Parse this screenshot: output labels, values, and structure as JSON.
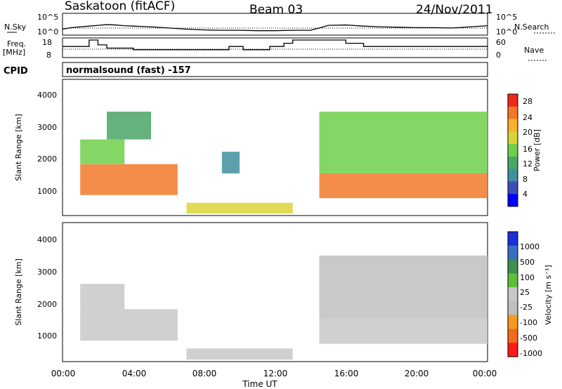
{
  "header": {
    "title": "Saskatoon (fitACF)",
    "beam": "Beam 03",
    "date": "24/Nov/2011"
  },
  "noise": {
    "left_label": "N.Sky",
    "right_label": "N.Search",
    "ticks": [
      "10^5",
      "10^0"
    ]
  },
  "freq": {
    "left_label_1": "Freq.",
    "left_label_2": "[MHz]",
    "right_label": "Nave",
    "left_ticks": [
      "18",
      "8"
    ],
    "right_ticks": [
      "60",
      "0"
    ]
  },
  "cpid": {
    "label": "CPID",
    "text": "normalsound (fast) -157"
  },
  "panels": {
    "power": {
      "ylabel": "Slant Range [km]",
      "yticks": [
        "4000",
        "3000",
        "2000",
        "1000"
      ],
      "colorbar_label": "Power [dB]",
      "colorbar_ticks": [
        "28",
        "24",
        "20",
        "16",
        "12",
        "8",
        "4"
      ]
    },
    "velocity": {
      "ylabel": "Slant Range [km]",
      "yticks": [
        "4000",
        "3000",
        "2000",
        "1000"
      ],
      "colorbar_label": "Velocity [m s⁻¹]",
      "colorbar_ticks": [
        "1000",
        "500",
        "100",
        "25",
        "-25",
        "-100",
        "-500",
        "-1000"
      ]
    }
  },
  "xaxis": {
    "label": "Time UT",
    "ticks": [
      "00:00",
      "04:00",
      "08:00",
      "12:00",
      "16:00",
      "20:00",
      "00:00"
    ]
  },
  "chart_data": [
    {
      "type": "line",
      "title": "N.Sky",
      "x_hours": [
        0,
        0.5,
        1,
        1.5,
        2,
        2.5,
        3,
        3.5,
        4,
        5,
        6,
        7,
        8,
        9,
        10,
        11,
        12,
        13,
        14,
        14.5,
        15,
        16,
        17,
        18,
        19,
        20,
        21,
        22,
        23,
        24
      ],
      "values_log10": [
        1.2,
        1.6,
        1.8,
        2.0,
        2.2,
        2.4,
        2.3,
        2.1,
        2.0,
        1.8,
        1.5,
        1.2,
        1.0,
        0.9,
        0.9,
        0.8,
        0.8,
        0.9,
        0.9,
        1.5,
        2.2,
        2.3,
        2.0,
        1.8,
        1.7,
        1.6,
        1.6,
        1.5,
        1.8,
        2.1
      ],
      "ylim_log10": [
        0,
        5
      ]
    },
    {
      "type": "line",
      "title": "Freq.",
      "units": "MHz",
      "x_hours": [
        0,
        1.5,
        2,
        2.5,
        4,
        8,
        9.4,
        10.2,
        11.7,
        12.5,
        13,
        14.5,
        16,
        17,
        24
      ],
      "values": [
        14,
        18,
        15,
        13,
        12,
        12,
        14,
        12,
        14,
        16,
        18,
        18,
        16,
        14,
        14
      ],
      "ylim": [
        8,
        18
      ]
    },
    {
      "type": "heatmap",
      "title": "Power",
      "units": "dB",
      "x": "Time UT (hours)",
      "y": "Slant Range [km]",
      "xlim": [
        0,
        24
      ],
      "ylim": [
        180,
        4500
      ],
      "zlim": [
        0,
        30
      ],
      "colormap": [
        [
          "#0000ff",
          "#3a4fb5",
          "#3f8f9f",
          "#4aa567",
          "#6fcf4a",
          "#d9d33a",
          "#f5b22a",
          "#f2782a",
          "#ee2a1a"
        ]
      ],
      "data_gap_hours": [
        13,
        14.5
      ],
      "regions": [
        {
          "t": [
            1.0,
            6.5
          ],
          "r": [
            800,
            1800
          ],
          "z": 27
        },
        {
          "t": [
            1.0,
            3.5
          ],
          "r": [
            1800,
            2600
          ],
          "z": 15
        },
        {
          "t": [
            2.5,
            5.0
          ],
          "r": [
            2600,
            3500
          ],
          "z": 10
        },
        {
          "t": [
            7.0,
            13.0
          ],
          "r": [
            200,
            550
          ],
          "z": 18
        },
        {
          "t": [
            9.0,
            10.0
          ],
          "r": [
            1500,
            2200
          ],
          "z": 9
        },
        {
          "t": [
            14.5,
            24.0
          ],
          "r": [
            700,
            1500
          ],
          "z": 26
        },
        {
          "t": [
            14.5,
            24.0
          ],
          "r": [
            1500,
            3500
          ],
          "z": 16
        }
      ]
    },
    {
      "type": "heatmap",
      "title": "Velocity",
      "units": "m/s",
      "x": "Time UT (hours)",
      "y": "Slant Range [km]",
      "xlim": [
        0,
        24
      ],
      "ylim": [
        180,
        4500
      ],
      "zlim": [
        -1000,
        1000
      ],
      "colormap": [
        [
          "#ff1a1a",
          "#f26a1a",
          "#f59a22",
          "#bfbfbf",
          "#c8c8c8",
          "#5fbf3a",
          "#3f8f4f",
          "#3a6fbf",
          "#1a2fd9"
        ]
      ],
      "data_gap_hours": [
        13,
        14.5
      ],
      "regions": [
        {
          "t": [
            1.0,
            6.5
          ],
          "r": [
            800,
            1800
          ],
          "z": -120
        },
        {
          "t": [
            1.0,
            3.5
          ],
          "r": [
            1800,
            2600
          ],
          "z": 60
        },
        {
          "t": [
            7.0,
            13.0
          ],
          "r": [
            200,
            550
          ],
          "z": -80
        },
        {
          "t": [
            14.5,
            24.0
          ],
          "r": [
            700,
            1500
          ],
          "z": -10
        },
        {
          "t": [
            14.5,
            24.0
          ],
          "r": [
            1500,
            3500
          ],
          "z": -250
        }
      ]
    }
  ]
}
